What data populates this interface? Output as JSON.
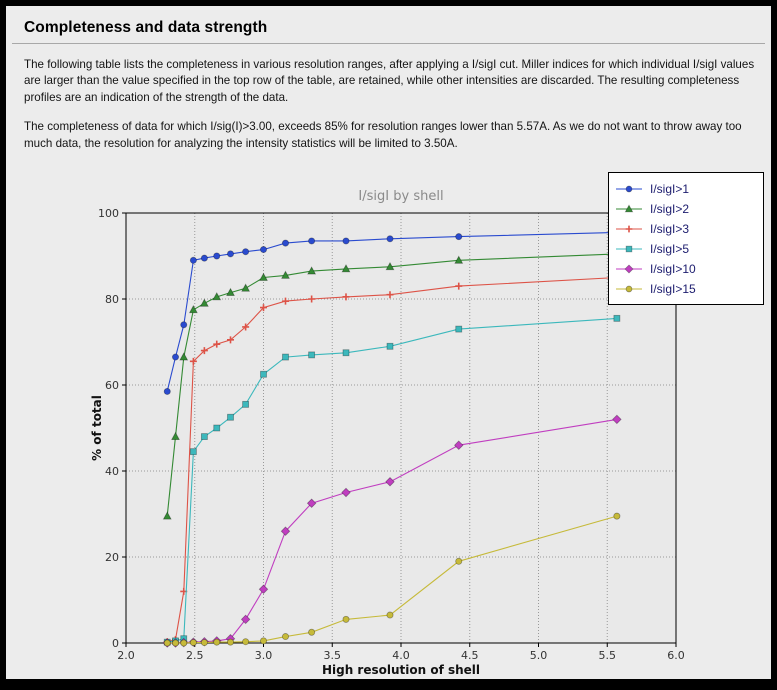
{
  "page": {
    "title": "Completeness and data strength",
    "paragraph1": "The following table lists the completeness in various resolution ranges, after applying a I/sigI cut. Miller indices for which individual I/sigI values are larger than the value specified in the top row of the table, are retained, while other intensities are discarded. The resulting completeness profiles are an indication of the strength of the data.",
    "paragraph2": "The completeness of data for which I/sig(I)>3.00, exceeds  85% for resolution ranges lower than 5.57A. As we do not want to throw away too much data, the resolution for analyzing the intensity statistics will be limited to 3.50A."
  },
  "chart_data": {
    "type": "line",
    "title": "I/sigI by shell",
    "xlabel": "High resolution of shell",
    "ylabel": "% of total",
    "xlim": [
      2.0,
      6.0
    ],
    "ylim": [
      0,
      100
    ],
    "xticks": [
      "2.0",
      "2.5",
      "3.0",
      "3.5",
      "4.0",
      "4.5",
      "5.0",
      "5.5",
      "6.0"
    ],
    "yticks": [
      "0",
      "20",
      "40",
      "60",
      "80",
      "100"
    ],
    "grid": true,
    "grid_style": "dotted",
    "legend_position": "top-right",
    "plot_bg_color": "#e9e9e9",
    "x": [
      2.3,
      2.36,
      2.42,
      2.49,
      2.57,
      2.66,
      2.76,
      2.87,
      3.0,
      3.16,
      3.35,
      3.6,
      3.92,
      4.42,
      5.57
    ],
    "series": [
      {
        "name": "I/sigI>1",
        "color": "#2a4bcf",
        "marker": "circle",
        "values": [
          58.5,
          66.5,
          74.0,
          89.0,
          89.5,
          90.0,
          90.5,
          91.0,
          91.5,
          93.0,
          93.5,
          93.5,
          94.0,
          94.5,
          95.5
        ]
      },
      {
        "name": "I/sigI>2",
        "color": "#348a34",
        "marker": "triangle",
        "values": [
          29.5,
          48.0,
          66.5,
          77.5,
          79.0,
          80.5,
          81.5,
          82.5,
          85.0,
          85.5,
          86.5,
          87.0,
          87.5,
          89.0,
          90.5
        ]
      },
      {
        "name": "I/sigI>3",
        "color": "#dd5347",
        "marker": "plus",
        "values": [
          0.3,
          0.8,
          12.0,
          65.5,
          68.0,
          69.5,
          70.5,
          73.5,
          78.0,
          79.5,
          80.0,
          80.5,
          81.0,
          83.0,
          85.0
        ]
      },
      {
        "name": "I/sigI>5",
        "color": "#3cb8bc",
        "marker": "square",
        "values": [
          0.2,
          0.5,
          1.0,
          44.5,
          48.0,
          50.0,
          52.5,
          55.5,
          62.5,
          66.5,
          67.0,
          67.5,
          69.0,
          73.0,
          75.5
        ]
      },
      {
        "name": "I/sigI>10",
        "color": "#c03ec0",
        "marker": "diamond",
        "values": [
          0.0,
          0.0,
          0.1,
          0.2,
          0.3,
          0.5,
          1.0,
          5.5,
          12.5,
          26.0,
          32.5,
          35.0,
          37.5,
          46.0,
          52.0
        ]
      },
      {
        "name": "I/sigI>15",
        "color": "#c6ba3a",
        "marker": "circle",
        "values": [
          0.0,
          0.0,
          0.0,
          0.1,
          0.1,
          0.2,
          0.2,
          0.3,
          0.5,
          1.5,
          2.5,
          5.5,
          6.5,
          19.0,
          29.5
        ]
      }
    ]
  }
}
